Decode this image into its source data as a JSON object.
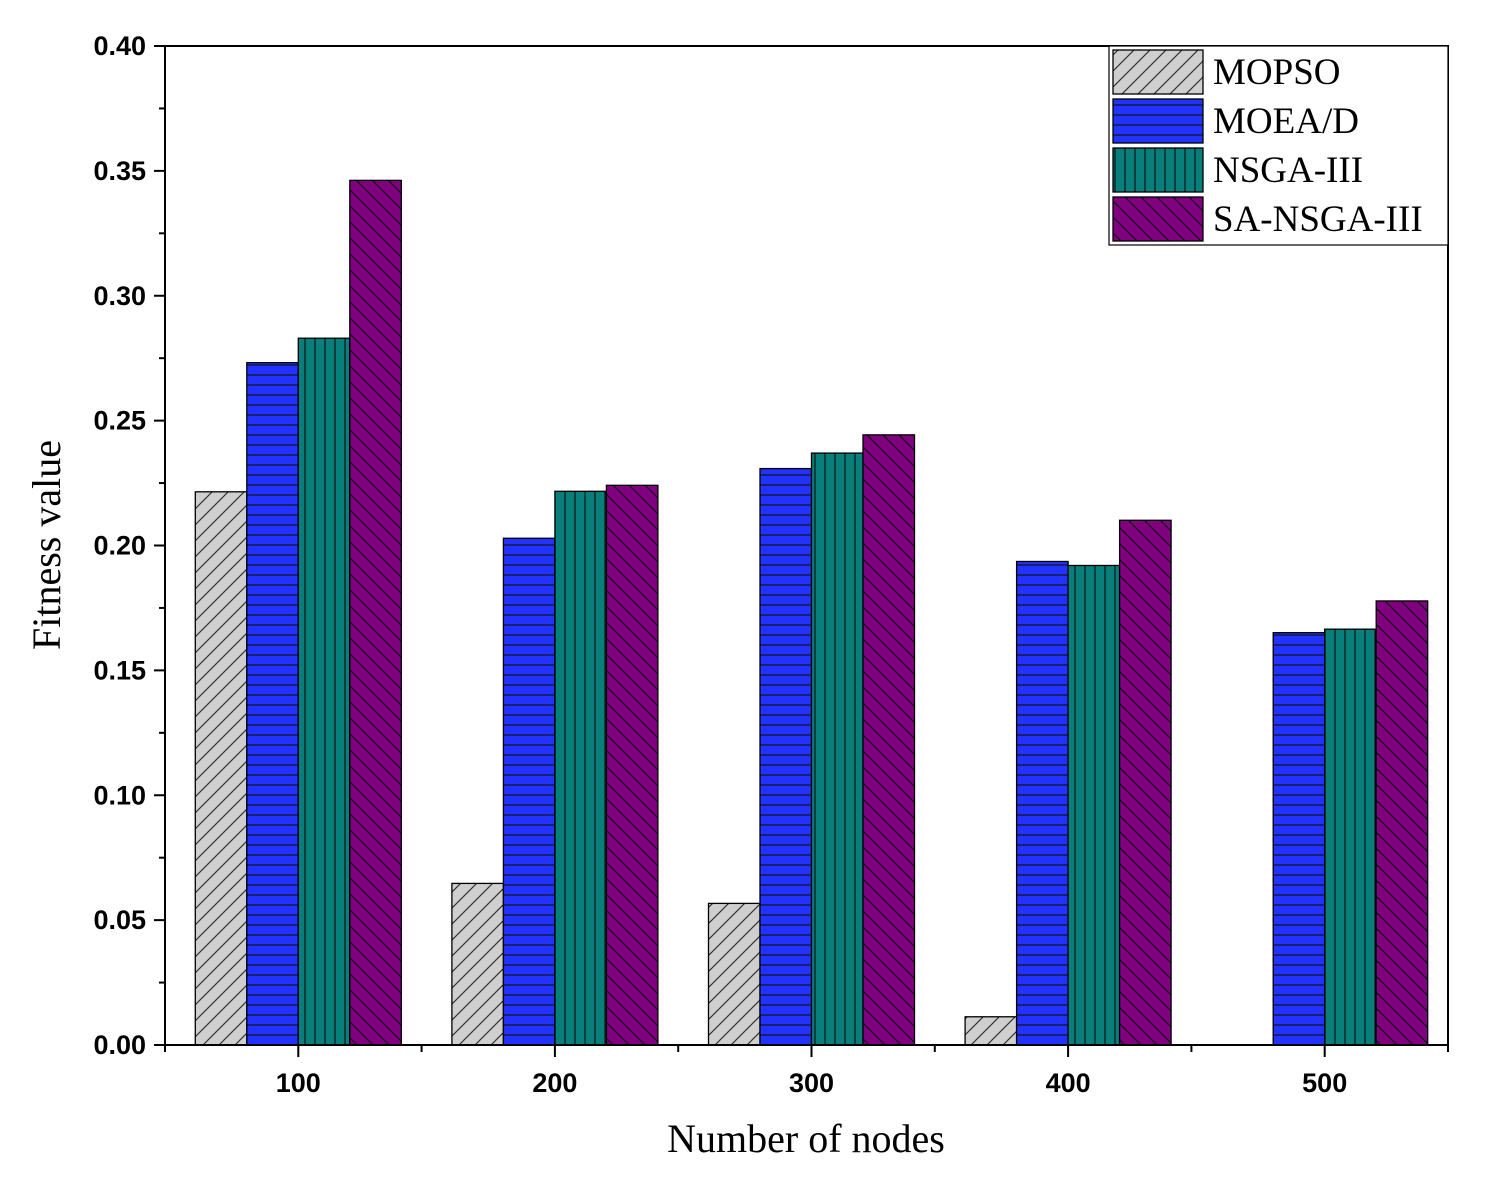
{
  "chart_data": {
    "type": "bar",
    "title": "",
    "xlabel": "Number of nodes",
    "ylabel": "Fitness value",
    "categories": [
      "100",
      "200",
      "300",
      "400",
      "500"
    ],
    "ylim": [
      0,
      0.4
    ],
    "yticks": [
      "0.00",
      "0.05",
      "0.10",
      "0.15",
      "0.20",
      "0.25",
      "0.30",
      "0.35",
      "0.40"
    ],
    "grid": false,
    "legend_position": "top-right",
    "series": [
      {
        "name": "MOPSO",
        "pattern": "diagonal-forward",
        "color": "#cfcfcf",
        "values": [
          0.2215,
          0.0647,
          0.0567,
          0.0113,
          0
        ]
      },
      {
        "name": "MOEA/D",
        "pattern": "horizontal",
        "color": "#2233ff",
        "values": [
          0.2732,
          0.2029,
          0.2308,
          0.1936,
          0.1651
        ]
      },
      {
        "name": "NSGA-III",
        "pattern": "vertical",
        "color": "#087f7a",
        "values": [
          0.283,
          0.2217,
          0.237,
          0.192,
          0.1665
        ]
      },
      {
        "name": "SA-NSGA-III",
        "pattern": "diagonal-backward",
        "color": "#800080",
        "values": [
          0.3462,
          0.2241,
          0.2443,
          0.2101,
          0.1778
        ]
      }
    ]
  }
}
